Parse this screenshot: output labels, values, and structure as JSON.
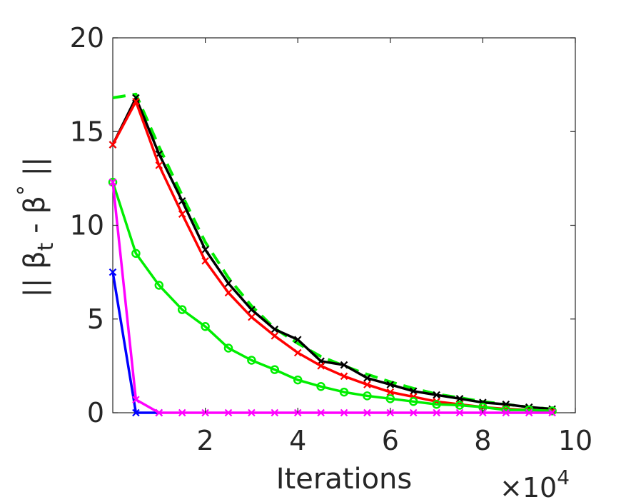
{
  "chart_data": {
    "type": "line",
    "xlabel": "Iterations",
    "ylabel_text": "|| β",
    "ylabel_sub": "t",
    "ylabel_mid": " - β",
    "ylabel_sup": "°",
    "ylabel_end": " ||",
    "x_multiplier": "×10",
    "x_multiplier_exp": "4",
    "xlim": [
      0,
      10
    ],
    "ylim": [
      0,
      20
    ],
    "x_ticks": [
      {
        "value": 2,
        "label": "2"
      },
      {
        "value": 4,
        "label": "4"
      },
      {
        "value": 6,
        "label": "6"
      },
      {
        "value": 8,
        "label": "8"
      },
      {
        "value": 10,
        "label": "10"
      }
    ],
    "y_ticks": [
      {
        "value": 0,
        "label": "0"
      },
      {
        "value": 5,
        "label": "5"
      },
      {
        "value": 10,
        "label": "10"
      },
      {
        "value": 15,
        "label": "15"
      },
      {
        "value": 20,
        "label": "20"
      }
    ],
    "grid": false,
    "series": [
      {
        "color": "#00ee00",
        "dashed": true,
        "marker": "none",
        "x": [
          0,
          0.5,
          1,
          1.5,
          2,
          2.5,
          3,
          3.5,
          4,
          4.5,
          5,
          5.5,
          6,
          6.5,
          7,
          7.5,
          8,
          8.5,
          9,
          9.5
        ],
        "y": [
          16.8,
          17.0,
          14.2,
          11.6,
          9.1,
          7.2,
          5.7,
          4.5,
          3.7,
          3.0,
          2.5,
          2.05,
          1.65,
          1.3,
          1.0,
          0.8,
          0.6,
          0.45,
          0.3,
          0.2
        ]
      },
      {
        "color": "#000000",
        "dashed": false,
        "marker": "x",
        "x": [
          0,
          0.5,
          1,
          1.5,
          2,
          2.5,
          3,
          3.5,
          4,
          4.5,
          5,
          5.5,
          6,
          6.5,
          7,
          7.5,
          8,
          8.5,
          9,
          9.5
        ],
        "y": [
          14.3,
          16.8,
          13.8,
          11.3,
          8.7,
          6.9,
          5.5,
          4.45,
          3.9,
          2.75,
          2.55,
          1.85,
          1.5,
          1.15,
          0.95,
          0.75,
          0.55,
          0.45,
          0.3,
          0.2
        ]
      },
      {
        "color": "#ff0000",
        "dashed": false,
        "marker": "x",
        "x": [
          0,
          0.5,
          1,
          1.5,
          2,
          2.5,
          3,
          3.5,
          4,
          4.5,
          5,
          5.5,
          6,
          6.5,
          7,
          7.5,
          8,
          8.5,
          9,
          9.5
        ],
        "y": [
          14.3,
          16.6,
          13.2,
          10.6,
          8.1,
          6.4,
          5.1,
          4.1,
          3.2,
          2.5,
          1.95,
          1.5,
          1.1,
          0.85,
          0.6,
          0.45,
          0.3,
          0.2,
          0.15,
          0.1
        ]
      },
      {
        "color": "#00ee00",
        "dashed": false,
        "marker": "o",
        "x": [
          0,
          0.5,
          1,
          1.5,
          2,
          2.5,
          3,
          3.5,
          4,
          4.5,
          5,
          5.5,
          6,
          6.5,
          7,
          7.5,
          8,
          8.5,
          9,
          9.5
        ],
        "y": [
          12.3,
          8.5,
          6.8,
          5.5,
          4.6,
          3.45,
          2.8,
          2.3,
          1.75,
          1.4,
          1.1,
          0.9,
          0.75,
          0.6,
          0.45,
          0.4,
          0.3,
          0.15,
          0.15,
          0.1
        ]
      },
      {
        "color": "#0000ff",
        "dashed": false,
        "marker": "x",
        "x": [
          0,
          0.5,
          1
        ],
        "y": [
          7.5,
          0.0,
          0.0
        ]
      },
      {
        "color": "#ff00ff",
        "dashed": false,
        "marker": "x",
        "x": [
          0,
          0.5,
          1,
          1.5,
          2,
          2.5,
          3,
          3.5,
          4,
          4.5,
          5,
          5.5,
          6,
          6.5,
          7,
          7.5,
          8,
          8.5,
          9,
          9.5
        ],
        "y": [
          12.3,
          0.7,
          0.0,
          0.0,
          0.0,
          0.0,
          0.0,
          0.0,
          0.0,
          0.0,
          0.0,
          0.0,
          0.0,
          0.0,
          0.0,
          0.0,
          0.0,
          0.0,
          0.0,
          0.0
        ]
      }
    ]
  }
}
